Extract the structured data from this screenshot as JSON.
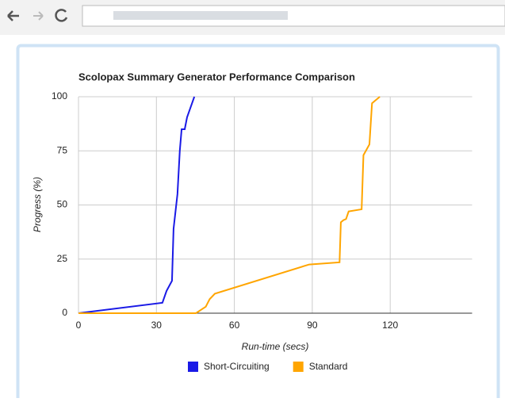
{
  "chart_data": {
    "type": "line",
    "title": "Scolopax Summary Generator Performance Comparison",
    "x_label": "Run-time (secs)",
    "y_label": "Progress (%)",
    "xlim": [
      0,
      150
    ],
    "ylim": [
      0,
      100
    ],
    "xticks": [
      0,
      30,
      60,
      90,
      120
    ],
    "yticks": [
      0,
      25,
      50,
      75,
      100
    ],
    "grid": true,
    "legend": "bottom",
    "series": [
      {
        "name": "Short-Circuiting",
        "color": "#1a1ae6",
        "x": [
          0,
          32.3,
          33.9,
          36,
          36.6,
          38.1,
          39,
          39.7,
          40.9,
          41.8,
          44.6
        ],
        "values": [
          0,
          4.8,
          10.3,
          15,
          39,
          55,
          75,
          85,
          85,
          90.5,
          100
        ]
      },
      {
        "name": "Standard",
        "color": "#ffa500",
        "x": [
          0,
          45.2,
          49,
          50.5,
          52.5,
          88.8,
          100.5,
          101,
          102,
          103,
          104,
          109,
          109.7,
          112,
          113,
          115,
          116
        ],
        "values": [
          0,
          0,
          3,
          6.5,
          9,
          22.5,
          23.5,
          42,
          43,
          43.5,
          47,
          48,
          73,
          78,
          97,
          99,
          100
        ]
      }
    ]
  }
}
